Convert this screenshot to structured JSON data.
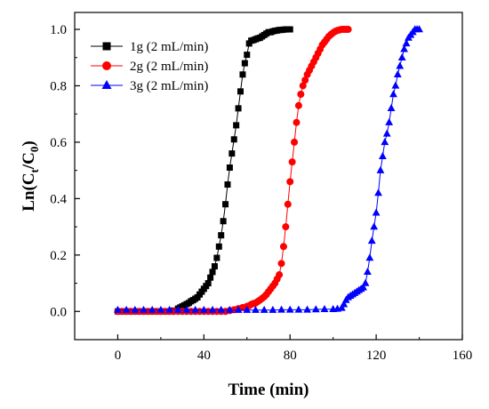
{
  "chart_data": {
    "type": "line",
    "xlabel": "Time (min)",
    "ylabel_main": "Ln(C",
    "ylabel_sub1": "t",
    "ylabel_mid": "/C",
    "ylabel_sub2": "0",
    "ylabel_end": ")",
    "xlim": [
      -20,
      160
    ],
    "ylim": [
      -0.1,
      1.06
    ],
    "x_ticks": [
      0,
      40,
      80,
      120,
      160
    ],
    "x_tick_labels": [
      "0",
      "40",
      "80",
      "120",
      "160"
    ],
    "y_ticks": [
      0.0,
      0.2,
      0.4,
      0.6,
      0.8,
      1.0
    ],
    "y_tick_labels": [
      "0.0",
      "0.2",
      "0.4",
      "0.6",
      "0.8",
      "1.0"
    ],
    "legend_position": "top-left",
    "grid": false,
    "series": [
      {
        "name": "1g (2 mL/min)",
        "color": "#000000",
        "marker": "square",
        "x": [
          0,
          2,
          4,
          6,
          8,
          10,
          12,
          14,
          16,
          18,
          20,
          22,
          24,
          26,
          28,
          29,
          30,
          31,
          32,
          33,
          34,
          35,
          36,
          37,
          38,
          39,
          40,
          41,
          42,
          43,
          44,
          45,
          46,
          47,
          48,
          49,
          50,
          51,
          52,
          53,
          54,
          55,
          56,
          57,
          58,
          59,
          60,
          61,
          62,
          63,
          64,
          65,
          66,
          67,
          68,
          69,
          70,
          71,
          72,
          73,
          74,
          75,
          76,
          77,
          78,
          79,
          80
        ],
        "y": [
          0.0,
          0.0,
          0.0,
          0.0,
          0.0,
          0.0,
          0.0,
          0.0,
          0.0,
          0.0,
          0.0,
          0.0,
          0.0,
          0.003,
          0.01,
          0.014,
          0.018,
          0.022,
          0.026,
          0.03,
          0.036,
          0.04,
          0.045,
          0.05,
          0.06,
          0.07,
          0.08,
          0.09,
          0.1,
          0.12,
          0.14,
          0.16,
          0.19,
          0.23,
          0.27,
          0.32,
          0.38,
          0.45,
          0.51,
          0.56,
          0.61,
          0.66,
          0.72,
          0.78,
          0.84,
          0.88,
          0.91,
          0.95,
          0.96,
          0.962,
          0.965,
          0.968,
          0.97,
          0.975,
          0.98,
          0.985,
          0.99,
          0.99,
          0.993,
          0.995,
          0.996,
          0.998,
          0.998,
          0.999,
          1.0,
          1.0,
          1.0
        ]
      },
      {
        "name": "2g (2 mL/min)",
        "color": "#ff0000",
        "marker": "circle",
        "x": [
          0,
          2,
          4,
          6,
          8,
          10,
          12,
          14,
          16,
          18,
          20,
          22,
          24,
          26,
          28,
          30,
          32,
          34,
          36,
          38,
          40,
          42,
          44,
          46,
          48,
          50,
          52,
          54,
          56,
          58,
          60,
          61,
          62,
          63,
          64,
          65,
          66,
          67,
          68,
          69,
          70,
          71,
          72,
          73,
          74,
          75,
          76,
          77,
          78,
          79,
          80,
          81,
          82,
          83,
          84,
          85,
          86,
          87,
          88,
          89,
          90,
          91,
          92,
          93,
          94,
          95,
          96,
          97,
          98,
          99,
          100,
          101,
          102,
          103,
          104,
          105,
          106,
          107
        ],
        "y": [
          0.0,
          0.0,
          0.0,
          0.0,
          0.0,
          0.0,
          0.0,
          0.0,
          0.0,
          0.0,
          0.0,
          0.0,
          0.0,
          0.0,
          0.0,
          0.0,
          0.0,
          0.0,
          0.0,
          0.0,
          0.0,
          0.0,
          0.0,
          0.0,
          0.0,
          0.0,
          0.003,
          0.006,
          0.01,
          0.014,
          0.018,
          0.02,
          0.025,
          0.028,
          0.03,
          0.035,
          0.04,
          0.046,
          0.052,
          0.06,
          0.07,
          0.08,
          0.09,
          0.1,
          0.115,
          0.13,
          0.17,
          0.23,
          0.3,
          0.38,
          0.46,
          0.53,
          0.6,
          0.67,
          0.73,
          0.77,
          0.8,
          0.82,
          0.84,
          0.855,
          0.87,
          0.885,
          0.9,
          0.915,
          0.93,
          0.945,
          0.955,
          0.965,
          0.975,
          0.982,
          0.988,
          0.993,
          0.996,
          0.998,
          1.0,
          1.0,
          1.0,
          1.0
        ]
      },
      {
        "name": "3g (2 mL/min)",
        "color": "#0000ff",
        "marker": "triangle",
        "x": [
          0,
          4,
          8,
          12,
          16,
          20,
          24,
          28,
          32,
          36,
          40,
          44,
          48,
          52,
          56,
          60,
          64,
          68,
          72,
          76,
          80,
          84,
          88,
          92,
          96,
          100,
          102,
          104,
          105,
          106,
          107,
          108,
          109,
          110,
          111,
          112,
          113,
          114,
          115,
          116,
          117,
          118,
          119,
          120,
          121,
          122,
          123,
          124,
          125,
          126,
          127,
          128,
          129,
          130,
          131,
          132,
          133,
          134,
          135,
          136,
          137,
          138,
          139,
          140
        ],
        "y": [
          0.005,
          0.005,
          0.005,
          0.005,
          0.005,
          0.005,
          0.005,
          0.005,
          0.005,
          0.005,
          0.005,
          0.005,
          0.005,
          0.005,
          0.005,
          0.005,
          0.005,
          0.005,
          0.005,
          0.006,
          0.006,
          0.006,
          0.006,
          0.007,
          0.008,
          0.008,
          0.009,
          0.012,
          0.025,
          0.04,
          0.05,
          0.055,
          0.06,
          0.065,
          0.07,
          0.075,
          0.08,
          0.085,
          0.1,
          0.14,
          0.19,
          0.25,
          0.3,
          0.35,
          0.42,
          0.5,
          0.55,
          0.6,
          0.63,
          0.67,
          0.72,
          0.77,
          0.8,
          0.84,
          0.87,
          0.9,
          0.93,
          0.95,
          0.97,
          0.98,
          0.99,
          1.0,
          1.0,
          1.0
        ]
      }
    ]
  }
}
